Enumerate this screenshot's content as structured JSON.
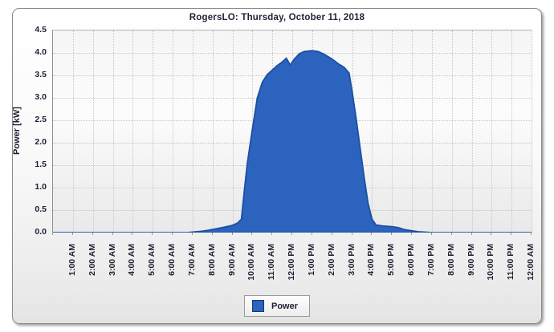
{
  "title": "RogersLO: Thursday, October 11, 2018",
  "colors": {
    "series_fill": "#2b63bf",
    "series_stroke": "#1d4fa1",
    "grid": "#c6c6c6",
    "text": "#1e1e32"
  },
  "y_axis": {
    "title": "Power [kW]",
    "ticks": [
      "4.5",
      "4.0",
      "3.5",
      "3.0",
      "2.5",
      "2.0",
      "1.5",
      "1.0",
      "0.5",
      "0.0"
    ]
  },
  "x_axis": {
    "ticks": [
      "1:00 AM",
      "2:00 AM",
      "3:00 AM",
      "4:00 AM",
      "5:00 AM",
      "6:00 AM",
      "7:00 AM",
      "8:00 AM",
      "9:00 AM",
      "10:00 AM",
      "11:00 AM",
      "12:00 PM",
      "1:00 PM",
      "2:00 PM",
      "3:00 PM",
      "4:00 PM",
      "5:00 PM",
      "6:00 PM",
      "7:00 PM",
      "8:00 PM",
      "9:00 PM",
      "10:00 PM",
      "11:00 PM",
      "12:00 AM"
    ]
  },
  "legend": {
    "label": "Power"
  },
  "chart_data": {
    "type": "area",
    "title": "RogersLO: Thursday, October 11, 2018",
    "xlabel": "",
    "ylabel": "Power [kW]",
    "ylim": [
      0,
      4.5
    ],
    "xlim_hours": [
      0,
      24
    ],
    "x_unit": "hour of day (0 = 12:00 AM, 24 = 12:00 AM next day)",
    "grid": true,
    "legend_position": "bottom-center",
    "series": [
      {
        "name": "Power",
        "color": "#2b63bf",
        "points": [
          [
            0,
            0
          ],
          [
            1,
            0
          ],
          [
            2,
            0
          ],
          [
            3,
            0
          ],
          [
            4,
            0
          ],
          [
            5,
            0
          ],
          [
            6,
            0
          ],
          [
            6.75,
            0
          ],
          [
            7,
            0.01
          ],
          [
            7.5,
            0.03
          ],
          [
            7.75,
            0.05
          ],
          [
            8,
            0.07
          ],
          [
            8.5,
            0.11
          ],
          [
            9,
            0.16
          ],
          [
            9.25,
            0.21
          ],
          [
            9.45,
            0.3
          ],
          [
            9.6,
            0.95
          ],
          [
            9.75,
            1.55
          ],
          [
            10,
            2.3
          ],
          [
            10.25,
            3.0
          ],
          [
            10.5,
            3.35
          ],
          [
            10.75,
            3.52
          ],
          [
            11,
            3.62
          ],
          [
            11.25,
            3.72
          ],
          [
            11.5,
            3.8
          ],
          [
            11.7,
            3.88
          ],
          [
            11.9,
            3.73
          ],
          [
            12.1,
            3.86
          ],
          [
            12.35,
            3.98
          ],
          [
            12.6,
            4.03
          ],
          [
            13,
            4.05
          ],
          [
            13.3,
            4.03
          ],
          [
            13.6,
            3.97
          ],
          [
            14,
            3.86
          ],
          [
            14.3,
            3.76
          ],
          [
            14.6,
            3.68
          ],
          [
            14.85,
            3.55
          ],
          [
            15,
            3.15
          ],
          [
            15.2,
            2.55
          ],
          [
            15.4,
            1.9
          ],
          [
            15.6,
            1.25
          ],
          [
            15.8,
            0.65
          ],
          [
            16,
            0.3
          ],
          [
            16.2,
            0.17
          ],
          [
            16.5,
            0.15
          ],
          [
            17,
            0.13
          ],
          [
            17.3,
            0.11
          ],
          [
            17.6,
            0.07
          ],
          [
            18,
            0.04
          ],
          [
            18.3,
            0.02
          ],
          [
            18.6,
            0.01
          ],
          [
            19,
            0
          ],
          [
            20,
            0
          ],
          [
            21,
            0
          ],
          [
            22,
            0
          ],
          [
            23,
            0
          ],
          [
            24,
            0
          ]
        ]
      }
    ]
  }
}
